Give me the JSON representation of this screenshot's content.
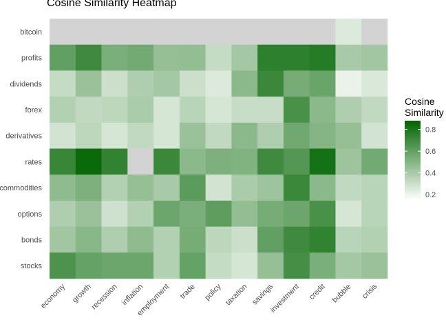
{
  "chart_data": {
    "type": "heatmap",
    "title": "Cosine Similarity Heatmap",
    "x_categories": [
      "economy",
      "growth",
      "recession",
      "inflation",
      "employment",
      "trade",
      "policy",
      "taxation",
      "savings",
      "investment",
      "credit",
      "bubble",
      "crisis"
    ],
    "y_categories": [
      "bitcoin",
      "profits",
      "dividends",
      "forex",
      "derivatives",
      "rates",
      "commodities",
      "options",
      "bonds",
      "stocks"
    ],
    "values": [
      [
        null,
        null,
        null,
        null,
        null,
        null,
        null,
        null,
        null,
        null,
        null,
        0.25,
        null
      ],
      [
        0.6,
        0.7,
        0.53,
        0.55,
        0.45,
        0.46,
        0.32,
        0.41,
        0.75,
        0.75,
        0.77,
        0.4,
        0.42
      ],
      [
        0.32,
        0.44,
        0.3,
        0.38,
        0.41,
        0.3,
        0.25,
        0.48,
        0.71,
        0.54,
        0.58,
        0.21,
        0.26
      ],
      [
        0.37,
        0.33,
        0.34,
        0.39,
        0.27,
        0.35,
        0.27,
        0.31,
        0.31,
        0.67,
        0.48,
        0.38,
        0.33
      ],
      [
        0.28,
        0.34,
        0.27,
        0.33,
        0.27,
        0.44,
        0.33,
        0.48,
        0.38,
        0.56,
        0.5,
        0.45,
        0.28
      ],
      [
        0.72,
        0.85,
        0.74,
        null,
        0.71,
        0.48,
        0.52,
        0.51,
        0.7,
        0.64,
        0.82,
        0.43,
        0.55
      ],
      [
        0.47,
        0.52,
        0.37,
        0.45,
        0.4,
        0.62,
        0.28,
        0.39,
        0.43,
        0.71,
        0.48,
        0.33,
        0.35
      ],
      [
        0.38,
        0.44,
        0.29,
        0.37,
        0.57,
        0.53,
        0.61,
        0.46,
        0.54,
        0.57,
        0.67,
        0.27,
        0.35
      ],
      [
        0.42,
        0.49,
        0.38,
        0.47,
        0.37,
        0.54,
        0.34,
        0.3,
        0.6,
        0.7,
        0.74,
        0.35,
        0.37
      ],
      [
        0.66,
        0.59,
        0.57,
        0.57,
        0.37,
        0.59,
        0.32,
        0.27,
        0.45,
        0.68,
        0.53,
        0.41,
        0.44
      ]
    ],
    "na_color": "#d3d3d3",
    "color_low": "#ffffff",
    "color_high": "#006400",
    "value_range": [
      0.15,
      0.88
    ],
    "legend": {
      "title_lines": [
        "Cosine",
        "Similarity"
      ],
      "ticks": [
        0.8,
        0.6,
        0.4,
        0.2
      ],
      "placement": "right"
    }
  }
}
